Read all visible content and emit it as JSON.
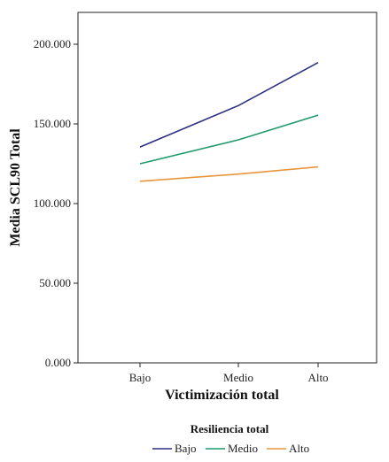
{
  "chart_data": {
    "type": "line",
    "xlabel": "Victimización total",
    "ylabel": "Media SCL90 Total",
    "categories": [
      "Bajo",
      "Medio",
      "Alto"
    ],
    "ylim": [
      0,
      220
    ],
    "yticks": [
      0,
      50,
      100,
      150,
      200
    ],
    "ytick_labels": [
      "0.000",
      "50.000",
      "100.000",
      "150.000",
      "200.000"
    ],
    "grid": false,
    "legend": {
      "title": "Resiliencia total",
      "placement": "bottom"
    },
    "series": [
      {
        "name": "Bajo",
        "values": [
          135.5,
          161.5,
          188.5
        ],
        "color": "#2e2f84"
      },
      {
        "name": "Medio",
        "values": [
          125.0,
          140.0,
          155.5
        ],
        "color": "#1e9a6a"
      },
      {
        "name": "Alto",
        "values": [
          114.0,
          118.5,
          123.0
        ],
        "color": "#e8963b"
      }
    ]
  }
}
